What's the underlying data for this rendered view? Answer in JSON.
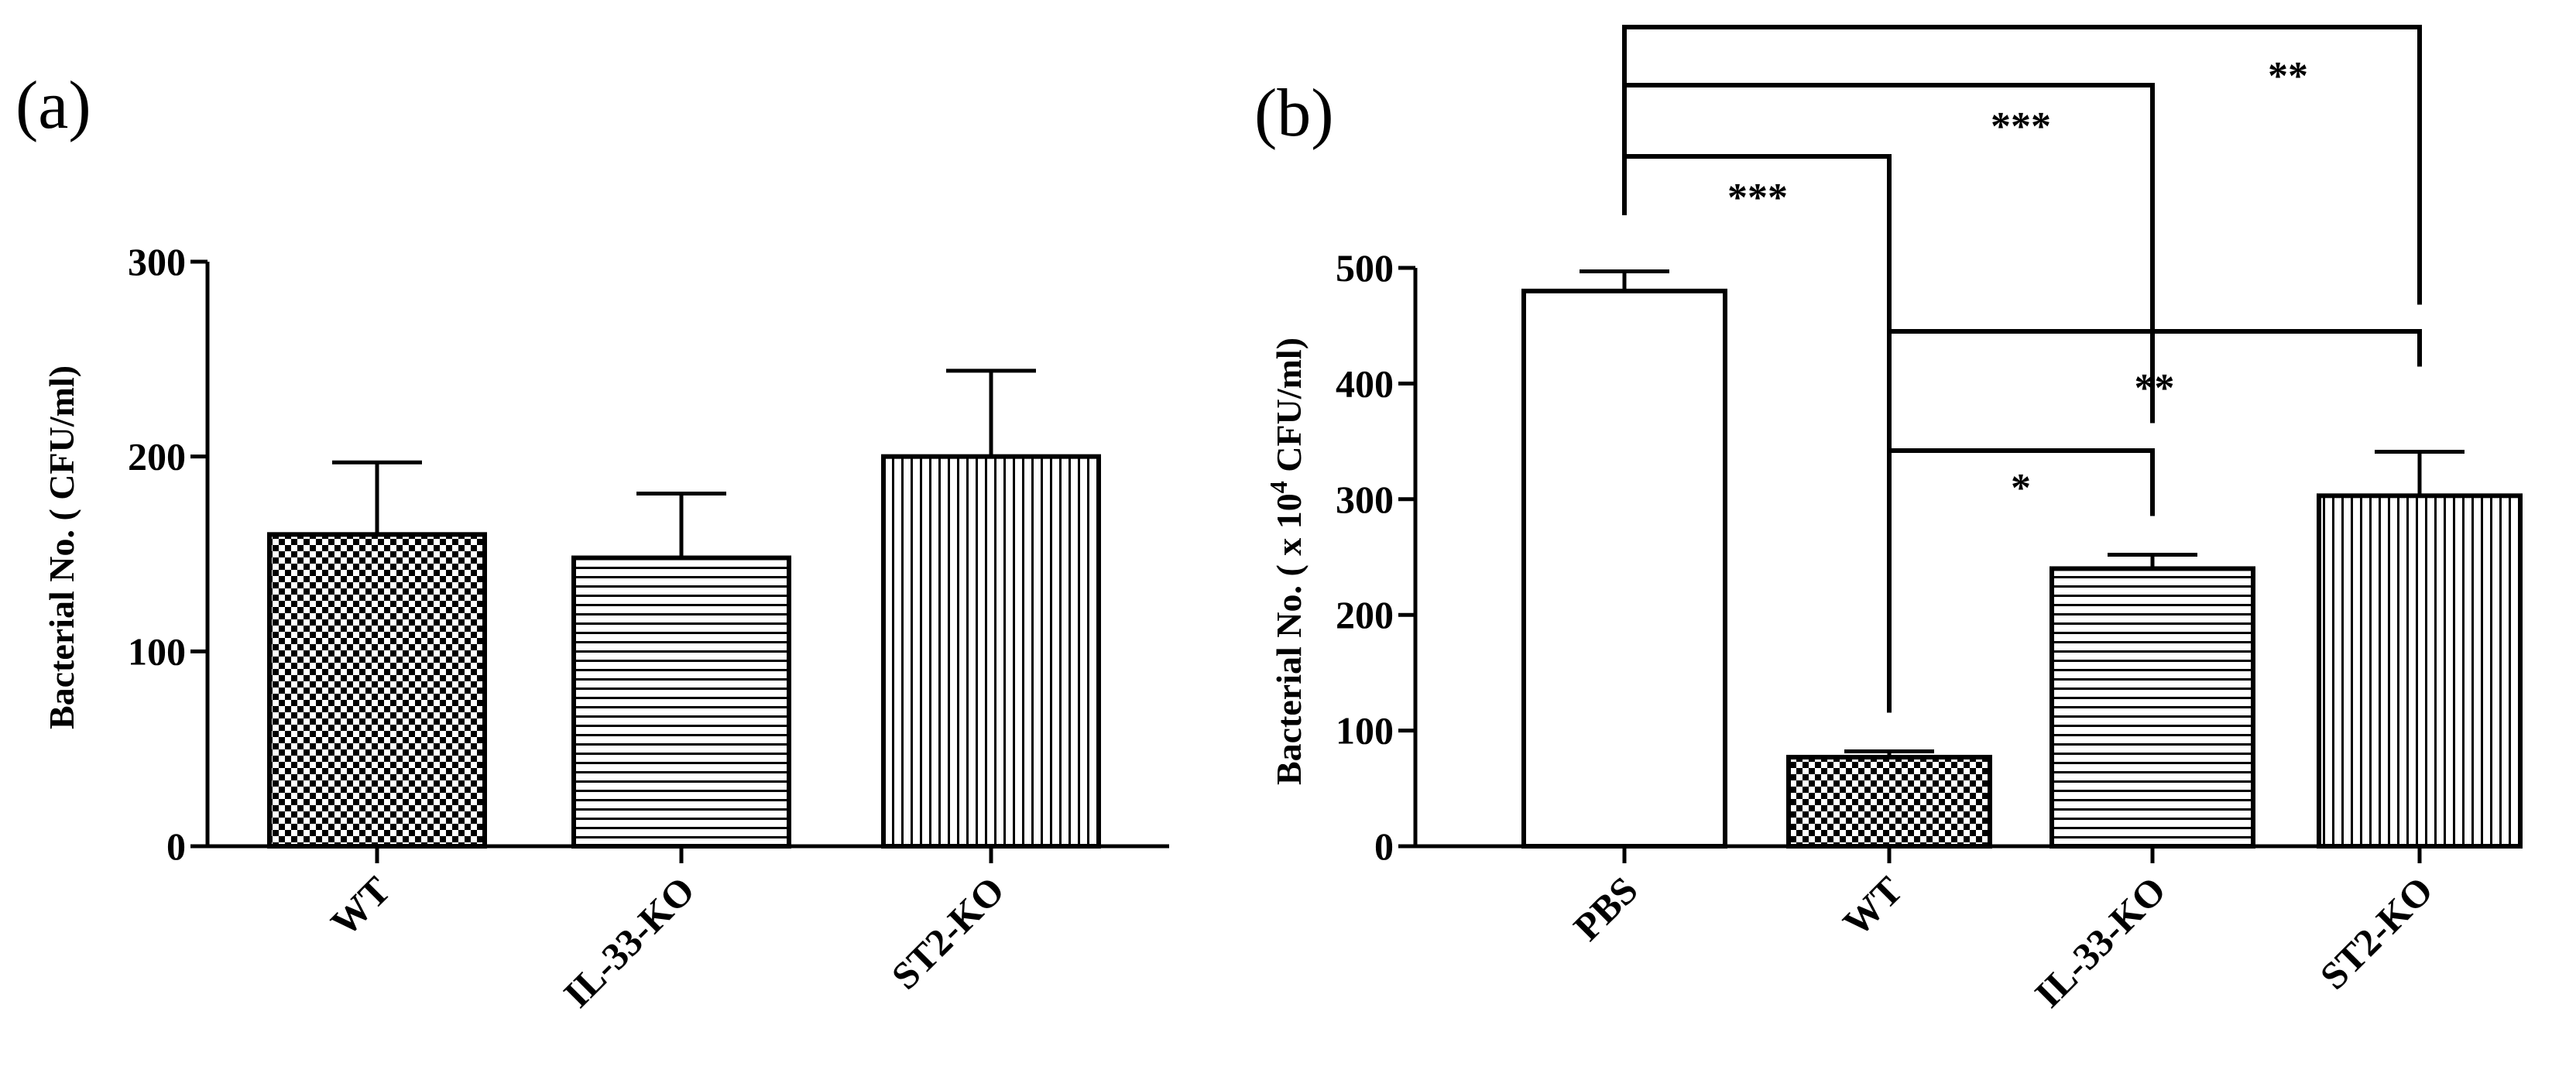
{
  "chart_data": [
    {
      "panel": "(a)",
      "type": "bar",
      "categories": [
        "WT",
        "IL-33-KO",
        "ST2-KO"
      ],
      "values": [
        160,
        148,
        200
      ],
      "errors": [
        37,
        33,
        44
      ],
      "patterns": [
        "checker",
        "horizontal",
        "vertical"
      ],
      "ylabel": "Bacterial No. ( CFU/ml)",
      "ylim": [
        0,
        300
      ],
      "yticks": [
        "0",
        "100",
        "200",
        "300"
      ],
      "grid": false,
      "significance": []
    },
    {
      "panel": "(b)",
      "type": "bar",
      "categories": [
        "PBS",
        "WT",
        "IL-33-KO",
        "ST2-KO"
      ],
      "values": [
        480,
        77,
        240,
        303
      ],
      "errors": [
        17,
        5,
        12,
        38
      ],
      "patterns": [
        "none",
        "checker",
        "horizontal",
        "vertical"
      ],
      "ylabel_prefix": "Bacterial No. ( x 10",
      "ylabel_sup": "4",
      "ylabel_suffix": " CFU/ml)",
      "ylim": [
        0,
        500
      ],
      "yticks": [
        "0",
        "100",
        "200",
        "300",
        "400",
        "500"
      ],
      "grid": false,
      "significance": [
        {
          "from": 0,
          "to": 3,
          "label": "**"
        },
        {
          "from": 0,
          "to": 2,
          "label": "***"
        },
        {
          "from": 0,
          "to": 1,
          "label": "***"
        },
        {
          "from": 1,
          "to": 3,
          "label": "**"
        },
        {
          "from": 1,
          "to": 2,
          "label": "*"
        }
      ]
    }
  ]
}
